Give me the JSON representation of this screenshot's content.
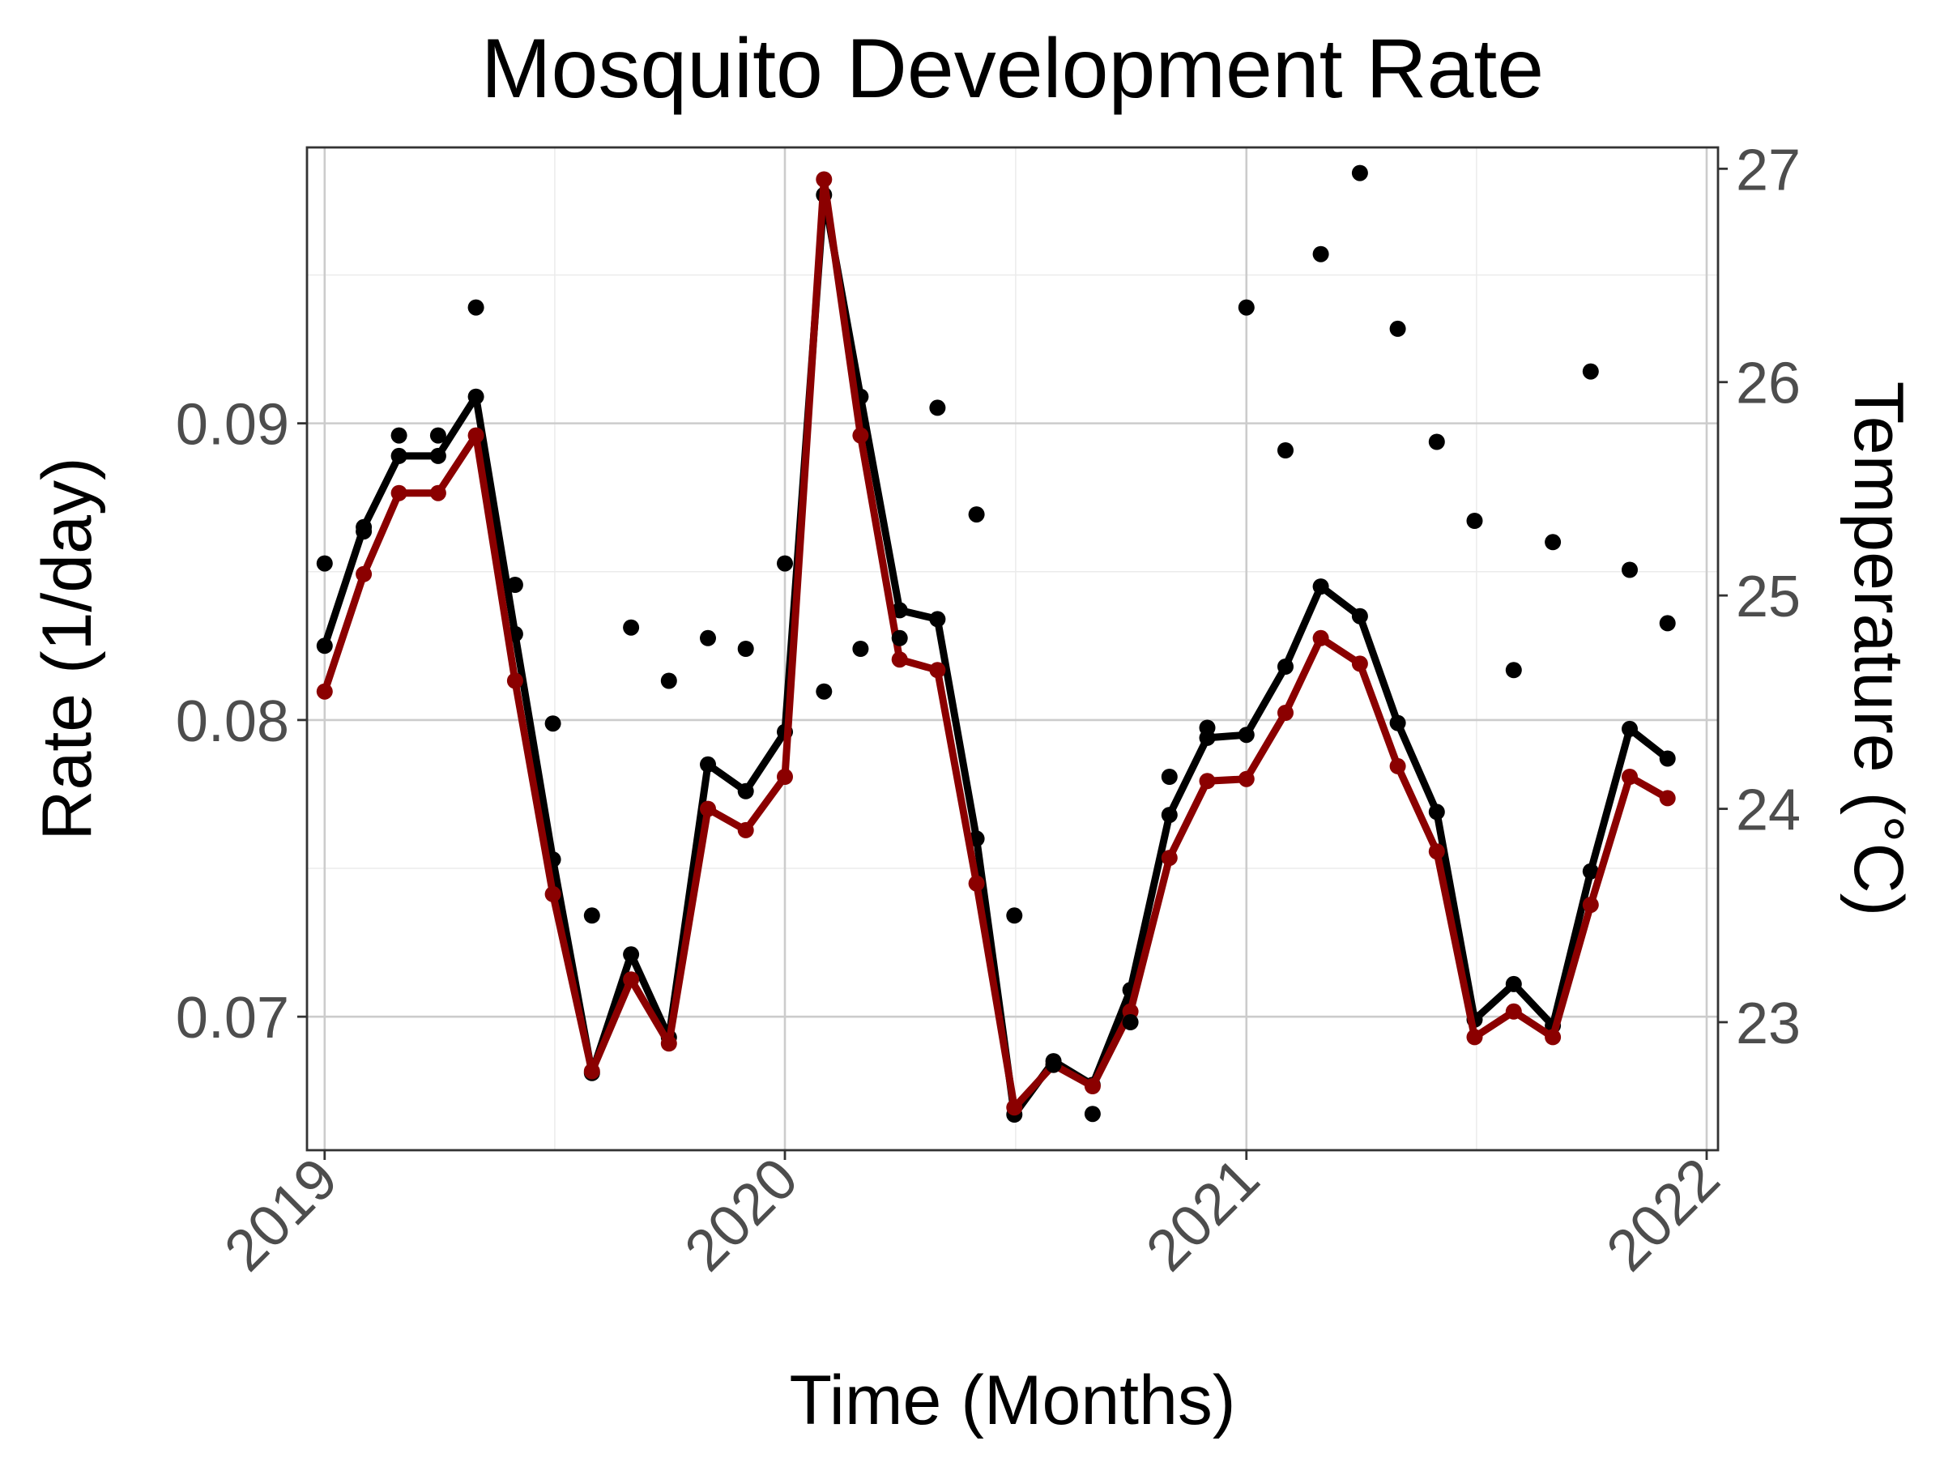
{
  "chart_data": {
    "type": "line",
    "title": "Mosquito Development Rate",
    "xlabel": "Time (Months)",
    "ylabel": "Rate (1/day)",
    "y2label": "Temperature (°C)",
    "x_ticks": [
      "2019",
      "2020",
      "2021",
      "2022"
    ],
    "y_ticks": [
      "0.07",
      "0.08",
      "0.09"
    ],
    "y2_ticks": [
      "23",
      "24",
      "25",
      "26",
      "27"
    ],
    "xlim": [
      "2018-12-18",
      "2022-01-10"
    ],
    "ylim": [
      0.0655,
      0.0993
    ],
    "y2lim": [
      22.4,
      27.1
    ],
    "grid": true,
    "colors": {
      "rate": "#000000",
      "temperature": "#8b0000",
      "axis_title_right": "#8b0000"
    },
    "x": [
      "2019-01-01",
      "2019-02-01",
      "2019-03-01",
      "2019-04-01",
      "2019-05-01",
      "2019-06-01",
      "2019-07-01",
      "2019-08-01",
      "2019-09-01",
      "2019-10-01",
      "2019-11-01",
      "2019-12-01",
      "2020-01-01",
      "2020-02-01",
      "2020-03-01",
      "2020-04-01",
      "2020-05-01",
      "2020-06-01",
      "2020-07-01",
      "2020-08-01",
      "2020-09-01",
      "2020-10-01",
      "2020-11-01",
      "2020-12-01",
      "2021-01-01",
      "2021-02-01",
      "2021-03-01",
      "2021-04-01",
      "2021-05-01",
      "2021-06-01",
      "2021-07-01",
      "2021-08-01",
      "2021-09-01",
      "2021-10-01",
      "2021-11-01",
      "2021-12-01"
    ],
    "series": [
      {
        "key": "rate_line",
        "axis": "left",
        "style": "line+points",
        "color": "#000000",
        "values": [
          0.0825,
          0.0865,
          0.0889,
          0.0889,
          0.0909,
          0.0829,
          0.0753,
          0.0681,
          0.0721,
          0.0693,
          0.0785,
          0.0776,
          0.0796,
          0.0977,
          0.0909,
          0.0837,
          0.0834,
          0.076,
          0.0667,
          0.0685,
          0.0677,
          0.0709,
          0.0768,
          0.0794,
          0.0795,
          0.0818,
          0.0845,
          0.0835,
          0.0799,
          0.0769,
          0.0699,
          0.0711,
          0.0697,
          0.0749,
          0.0797,
          0.0787
        ]
      },
      {
        "key": "temperature_line",
        "axis": "right",
        "style": "line+points",
        "color": "#8b0000",
        "values": [
          24.55,
          25.1,
          25.48,
          25.48,
          25.75,
          24.6,
          23.6,
          22.77,
          23.2,
          22.9,
          24.0,
          23.9,
          24.15,
          26.95,
          25.75,
          24.7,
          24.65,
          23.65,
          22.6,
          22.8,
          22.7,
          23.05,
          23.77,
          24.13,
          24.14,
          24.45,
          24.8,
          24.68,
          24.2,
          23.8,
          22.93,
          23.05,
          22.93,
          23.55,
          24.15,
          24.05
        ]
      },
      {
        "key": "temperature_points",
        "axis": "right",
        "style": "points",
        "color": "#000000",
        "values": [
          25.15,
          25.3,
          25.75,
          25.75,
          26.35,
          25.05,
          24.4,
          23.5,
          24.85,
          24.6,
          24.8,
          24.75,
          25.15,
          24.55,
          24.75,
          24.8,
          25.88,
          25.38,
          23.5,
          22.8,
          22.57,
          23.0,
          24.15,
          24.38,
          26.35,
          25.68,
          26.6,
          26.98,
          26.25,
          25.72,
          25.35,
          24.65,
          25.25,
          26.05,
          25.12,
          24.87
        ]
      }
    ]
  }
}
